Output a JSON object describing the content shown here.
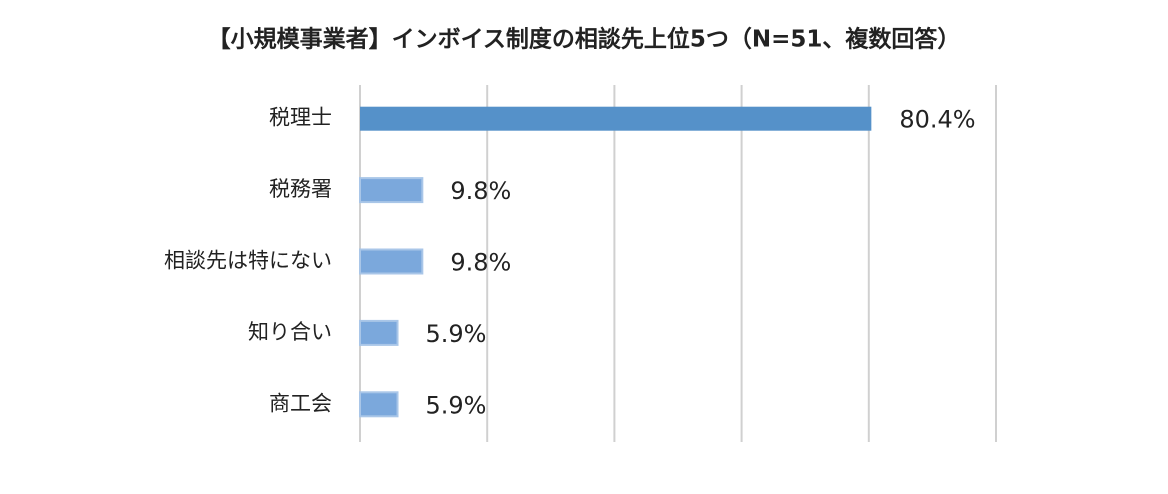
{
  "chart_data": {
    "type": "bar",
    "orientation": "horizontal",
    "title": "【小規模事業者】インボイス制度の相談先上位5つ（N=51、複数回答）",
    "categories": [
      "税理士",
      "税務署",
      "相談先は特にない",
      "知り合い",
      "商工会"
    ],
    "values": [
      80.4,
      9.8,
      9.8,
      5.9,
      5.9
    ],
    "value_labels": [
      "80.4%",
      "9.8%",
      "9.8%",
      "5.9%",
      "5.9%"
    ],
    "colors": [
      "#5591c9",
      "#7ba8dc",
      "#7ba8dc",
      "#7ba8dc",
      "#7ba8dc"
    ],
    "xlim": [
      0,
      100
    ],
    "xticks": [
      0,
      20,
      40,
      60,
      80,
      100
    ],
    "grid": true
  }
}
